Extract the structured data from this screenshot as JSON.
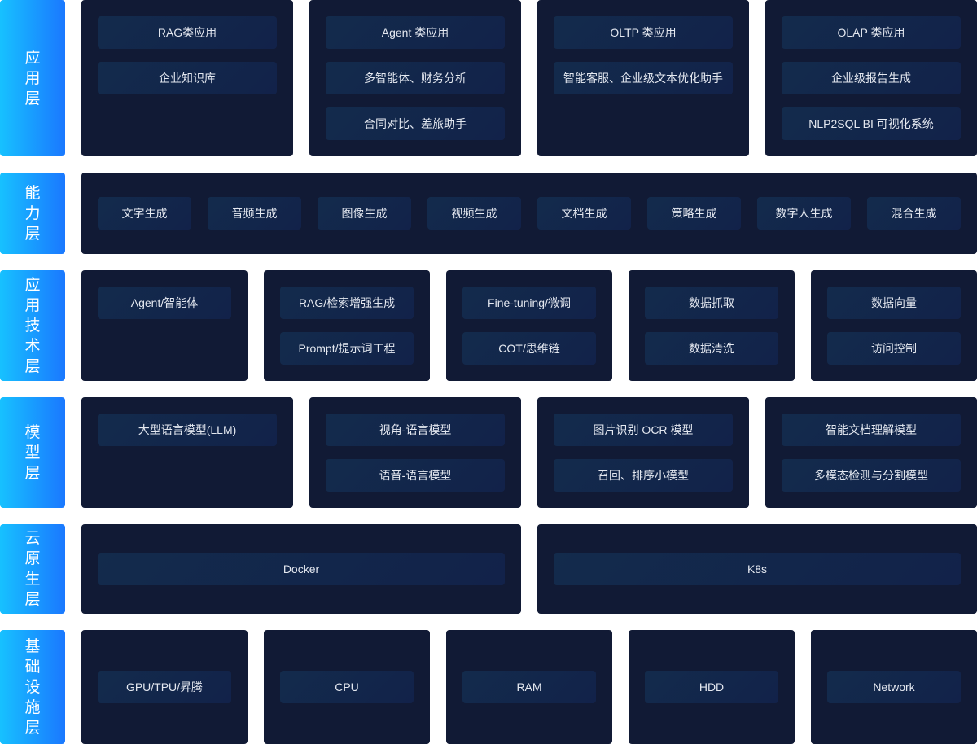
{
  "colors": {
    "label_gradient_start": "#17c1ff",
    "label_gradient_end": "#1a78ff",
    "panel": "#111a35",
    "chip": "#132b4c"
  },
  "layers": [
    {
      "label": "应用层",
      "panels": [
        [
          "RAG类应用",
          "企业知识库"
        ],
        [
          "Agent 类应用",
          "多智能体、财务分析",
          "合同对比、差旅助手"
        ],
        [
          "OLTP 类应用",
          "智能客服、企业级文本优化助手"
        ],
        [
          "OLAP 类应用",
          "企业级报告生成",
          "NLP2SQL BI 可视化系统"
        ]
      ]
    },
    {
      "label": "能力层",
      "panels": [
        [
          "文字生成",
          "音频生成",
          "图像生成",
          "视频生成",
          "文档生成",
          "策略生成",
          "数字人生成",
          "混合生成"
        ]
      ]
    },
    {
      "label": "应用技术层",
      "panels": [
        [
          "Agent/智能体"
        ],
        [
          "RAG/检索增强生成",
          "Prompt/提示词工程"
        ],
        [
          "Fine-tuning/微调",
          "COT/思维链"
        ],
        [
          "数据抓取",
          "数据清洗"
        ],
        [
          "数据向量",
          "访问控制"
        ]
      ]
    },
    {
      "label": "模型层",
      "panels": [
        [
          "大型语言模型(LLM)"
        ],
        [
          "视角-语言模型",
          "语音-语言模型"
        ],
        [
          "图片识别 OCR 模型",
          "召回、排序小模型"
        ],
        [
          "智能文档理解模型",
          "多模态检测与分割模型"
        ]
      ]
    },
    {
      "label": "云原生层",
      "panels": [
        [
          "Docker"
        ],
        [
          "K8s"
        ]
      ]
    },
    {
      "label": "基础设施层",
      "panels": [
        [
          "GPU/TPU/昇腾"
        ],
        [
          "CPU"
        ],
        [
          "RAM"
        ],
        [
          "HDD"
        ],
        [
          "Network"
        ]
      ]
    }
  ]
}
